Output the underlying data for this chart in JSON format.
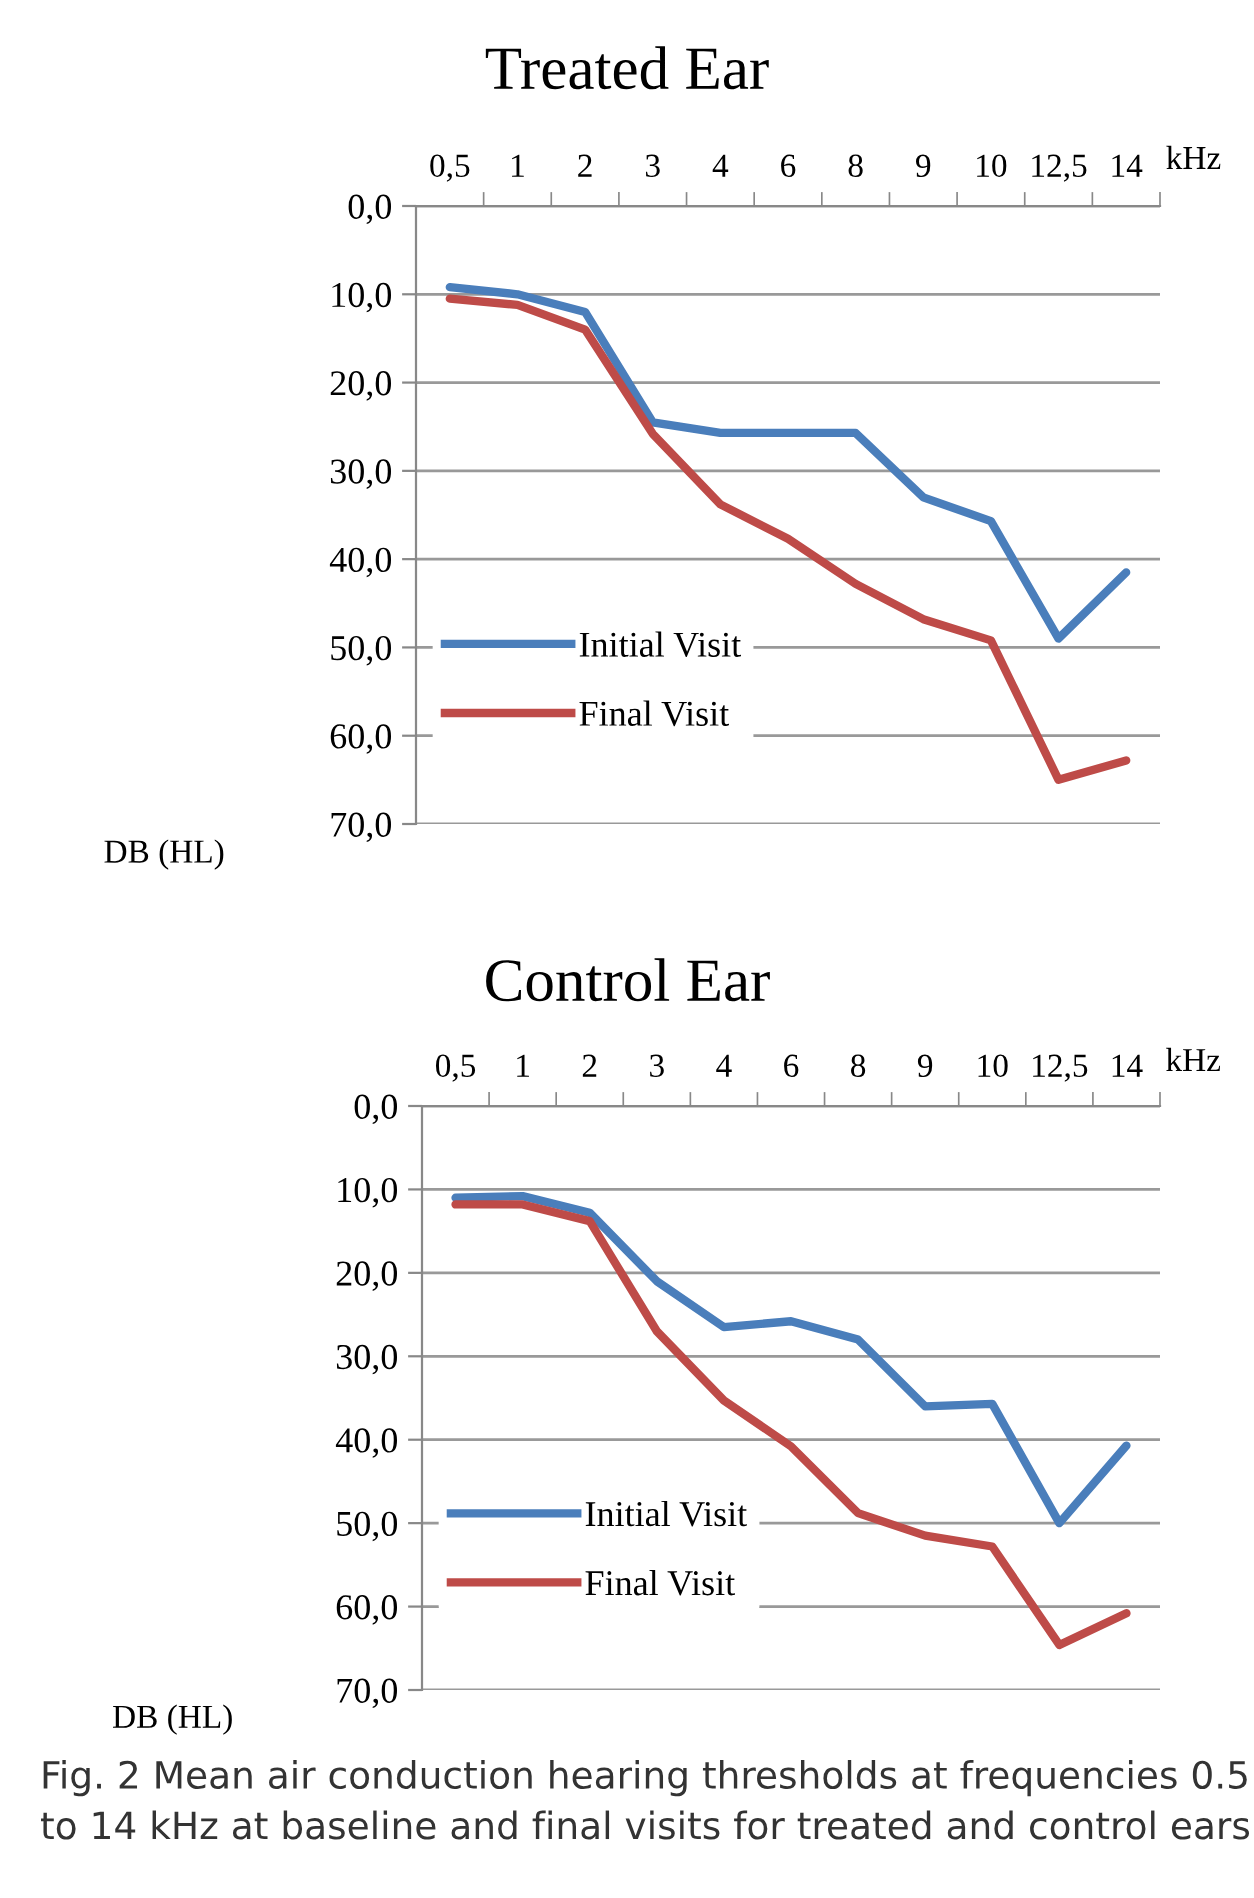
{
  "chart_data": [
    {
      "type": "line",
      "title": "Treated Ear",
      "xlabel": "kHz",
      "ylabel": "DB (HL)",
      "categories": [
        "0,5",
        "1",
        "2",
        "3",
        "4",
        "6",
        "8",
        "9",
        "10",
        "12,5",
        "14"
      ],
      "series": [
        {
          "name": "Initial Visit",
          "color": "#4a7ebb",
          "values": [
            9.2,
            10,
            12,
            24.5,
            25.7,
            25.7,
            25.7,
            33,
            35.7,
            49,
            41.5
          ]
        },
        {
          "name": "Final Visit",
          "color": "#be4b48",
          "values": [
            10.5,
            11.2,
            14,
            25.8,
            33.8,
            37.7,
            42.8,
            46.8,
            49.2,
            65,
            62.8
          ]
        }
      ],
      "ylim": [
        70,
        0
      ],
      "yticks": [
        {
          "value": 0,
          "label": "0,0"
        },
        {
          "value": 10,
          "label": "10,0"
        },
        {
          "value": 20,
          "label": "20,0"
        },
        {
          "value": 30,
          "label": "30,0"
        },
        {
          "value": 40,
          "label": "40,0"
        },
        {
          "value": 50,
          "label": "50,0"
        },
        {
          "value": 60,
          "label": "60,0"
        },
        {
          "value": 70,
          "label": "70,0"
        }
      ],
      "grid": "y",
      "legend": "bottom left",
      "marker": "none",
      "line_style": "solid"
    },
    {
      "type": "line",
      "title": "Control Ear",
      "xlabel": "kHz",
      "ylabel": "DB (HL)",
      "categories": [
        "0,5",
        "1",
        "2",
        "3",
        "4",
        "6",
        "8",
        "9",
        "10",
        "12,5",
        "14"
      ],
      "series": [
        {
          "name": "Initial Visit",
          "color": "#4a7ebb",
          "values": [
            11,
            10.8,
            12.8,
            21,
            26.5,
            25.8,
            28,
            36,
            35.7,
            50,
            40.7
          ]
        },
        {
          "name": "Final Visit",
          "color": "#be4b48",
          "values": [
            11.8,
            11.8,
            13.8,
            27,
            35.3,
            40.8,
            48.8,
            51.5,
            52.8,
            64.6,
            60.8
          ]
        }
      ],
      "ylim": [
        70,
        0
      ],
      "yticks": [
        {
          "value": 0,
          "label": "0,0"
        },
        {
          "value": 10,
          "label": "10,0"
        },
        {
          "value": 20,
          "label": "20,0"
        },
        {
          "value": 30,
          "label": "30,0"
        },
        {
          "value": 40,
          "label": "40,0"
        },
        {
          "value": 50,
          "label": "50,0"
        },
        {
          "value": 60,
          "label": "60,0"
        },
        {
          "value": 70,
          "label": "70,0"
        }
      ],
      "grid": "y",
      "legend": "bottom left",
      "marker": "none",
      "line_style": "solid",
      "annotations": [
        "Fig. 2 Mean air conduction hearing thresholds at frequencies 0.5 to 14 kHz at baseline and final visits for treated and control ears"
      ]
    }
  ]
}
